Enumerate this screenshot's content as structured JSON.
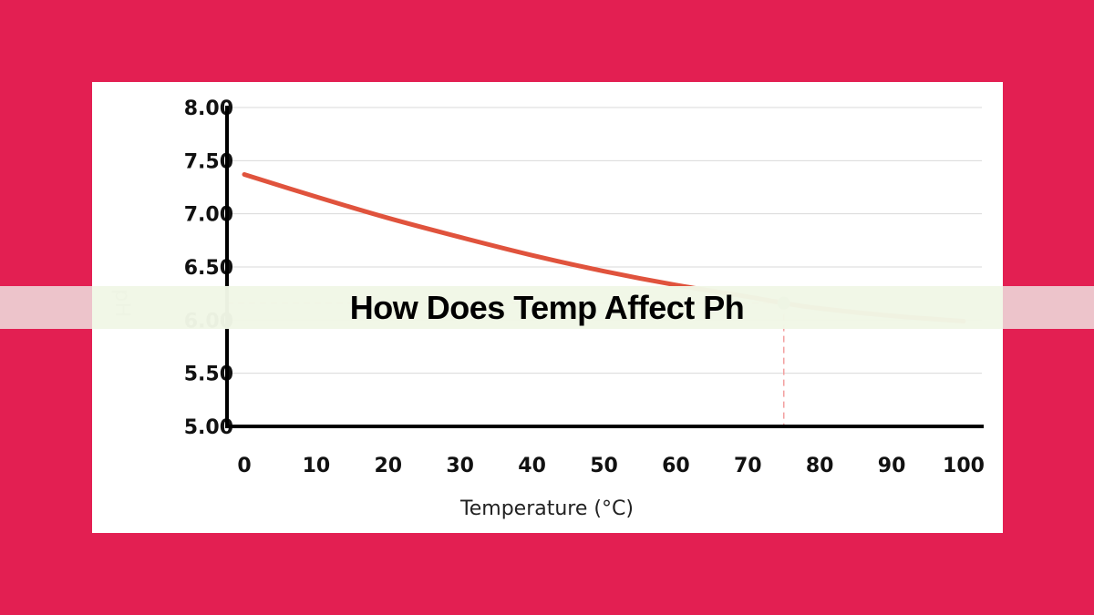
{
  "title": "How Does Temp Affect Ph",
  "colors": {
    "background": "#e31f52",
    "card": "#ffffff",
    "curve": "#e0533d",
    "grid": "#d9d9d9",
    "marker": "#a9b0a9",
    "guide": "#f3a0a0"
  },
  "chart_data": {
    "type": "line",
    "xlabel": "Temperature (°C)",
    "ylabel": "pH",
    "xlim": [
      0,
      100
    ],
    "ylim": [
      5.0,
      8.0
    ],
    "x_ticks": [
      "0",
      "10",
      "20",
      "30",
      "40",
      "50",
      "60",
      "70",
      "80",
      "90",
      "100"
    ],
    "y_ticks": [
      "8.00",
      "7.50",
      "7.00",
      "6.50",
      "6.00",
      "5.50",
      "5.00"
    ],
    "grid": true,
    "series": [
      {
        "x": [
          0,
          10,
          20,
          30,
          40,
          50,
          60,
          70,
          75,
          80,
          90,
          100
        ],
        "y": [
          7.37,
          7.16,
          6.96,
          6.78,
          6.61,
          6.46,
          6.33,
          6.22,
          6.16,
          6.11,
          6.04,
          5.99
        ]
      }
    ],
    "highlight": {
      "x": 75,
      "y": 6.16
    }
  }
}
